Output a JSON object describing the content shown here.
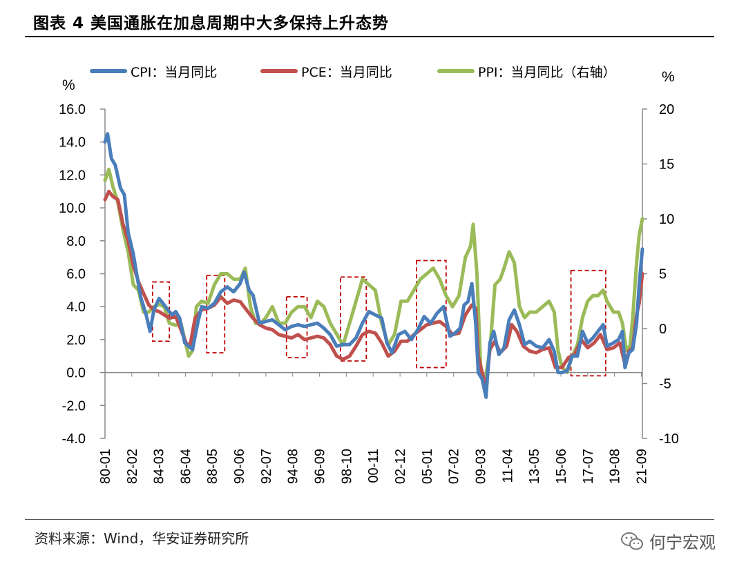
{
  "header": {
    "title": "图表 4  美国通胀在加息周期中大多保持上升态势"
  },
  "footer": {
    "source": "资料来源：Wind，华安证券研究所",
    "watermark": "何宁宏观",
    "watermark_icon": "wechat-icon"
  },
  "chart_data": {
    "type": "line",
    "left_unit": "%",
    "right_unit": "%",
    "y_left": {
      "range": [
        -4,
        16
      ],
      "ticks": [
        -4,
        -2,
        0,
        2,
        4,
        6,
        8,
        10,
        12,
        14,
        16
      ],
      "labels": [
        "-4.0",
        "-2.0",
        "0.0",
        "2.0",
        "4.0",
        "6.0",
        "8.0",
        "10.0",
        "12.0",
        "14.0",
        "16.0"
      ]
    },
    "y_right": {
      "range": [
        -10,
        20
      ],
      "ticks": [
        -10,
        -5,
        0,
        5,
        10,
        15,
        20
      ],
      "labels": [
        "-10",
        "-5",
        "0",
        "5",
        "10",
        "15",
        "20"
      ]
    },
    "x_range": [
      1980.0,
      2021.75
    ],
    "x_ticks": [
      {
        "label": "80-01",
        "x": 1980.0
      },
      {
        "label": "82-02",
        "x": 1982.08
      },
      {
        "label": "84-03",
        "x": 1984.17
      },
      {
        "label": "86-04",
        "x": 1986.25
      },
      {
        "label": "88-05",
        "x": 1988.33
      },
      {
        "label": "90-06",
        "x": 1990.42
      },
      {
        "label": "92-07",
        "x": 1992.5
      },
      {
        "label": "94-08",
        "x": 1994.58
      },
      {
        "label": "96-09",
        "x": 1996.67
      },
      {
        "label": "98-10",
        "x": 1998.75
      },
      {
        "label": "00-11",
        "x": 2000.83
      },
      {
        "label": "02-12",
        "x": 2002.92
      },
      {
        "label": "05-01",
        "x": 2005.0
      },
      {
        "label": "07-02",
        "x": 2007.08
      },
      {
        "label": "09-03",
        "x": 2009.17
      },
      {
        "label": "11-04",
        "x": 2011.25
      },
      {
        "label": "13-05",
        "x": 2013.33
      },
      {
        "label": "15-06",
        "x": 2015.42
      },
      {
        "label": "17-07",
        "x": 2017.5
      },
      {
        "label": "19-08",
        "x": 2019.58
      },
      {
        "label": "21-09",
        "x": 2021.67
      }
    ],
    "series": [
      {
        "name": "CPI：当月同比",
        "axis": "left",
        "color": "#4A7EBB",
        "x": [
          1980.0,
          1980.2,
          1980.5,
          1980.8,
          1981.2,
          1981.5,
          1981.8,
          1982.2,
          1982.5,
          1982.8,
          1983.2,
          1983.5,
          1983.8,
          1984.2,
          1984.5,
          1984.8,
          1985.2,
          1985.5,
          1985.8,
          1986.2,
          1986.5,
          1986.8,
          1987.2,
          1987.5,
          1988.0,
          1988.5,
          1989.0,
          1989.5,
          1990.0,
          1990.5,
          1990.8,
          1991.2,
          1991.5,
          1992.0,
          1992.5,
          1993.0,
          1993.5,
          1994.0,
          1994.5,
          1995.0,
          1995.5,
          1996.0,
          1996.5,
          1997.0,
          1997.5,
          1998.0,
          1998.5,
          1999.0,
          1999.5,
          2000.0,
          2000.5,
          2001.0,
          2001.5,
          2001.9,
          2002.3,
          2002.8,
          2003.3,
          2003.8,
          2004.3,
          2004.8,
          2005.3,
          2005.8,
          2006.3,
          2006.8,
          2007.2,
          2007.6,
          2007.9,
          2008.2,
          2008.5,
          2008.8,
          2009.0,
          2009.3,
          2009.6,
          2009.9,
          2010.2,
          2010.6,
          2011.0,
          2011.4,
          2011.8,
          2012.2,
          2012.6,
          2013.0,
          2013.5,
          2014.0,
          2014.5,
          2014.9,
          2015.2,
          2015.5,
          2015.9,
          2016.3,
          2016.7,
          2017.1,
          2017.5,
          2017.9,
          2018.3,
          2018.7,
          2019.0,
          2019.5,
          2019.9,
          2020.2,
          2020.4,
          2020.7,
          2021.0,
          2021.3,
          2021.5,
          2021.75
        ],
        "y": [
          14.0,
          14.5,
          13.0,
          12.6,
          11.2,
          10.8,
          8.5,
          7.2,
          5.8,
          4.5,
          3.5,
          2.5,
          3.8,
          4.5,
          4.2,
          3.9,
          3.5,
          3.7,
          3.3,
          1.8,
          1.6,
          1.4,
          3.0,
          4.0,
          3.9,
          4.2,
          4.9,
          5.2,
          4.9,
          5.4,
          6.1,
          5.0,
          4.7,
          3.0,
          3.1,
          3.2,
          2.9,
          2.6,
          2.8,
          2.9,
          2.8,
          2.9,
          3.0,
          2.7,
          2.3,
          1.6,
          1.7,
          1.7,
          2.1,
          3.0,
          3.7,
          3.5,
          3.3,
          1.8,
          1.2,
          2.3,
          2.5,
          2.0,
          2.6,
          3.4,
          3.0,
          3.6,
          4.0,
          2.2,
          2.4,
          2.7,
          4.1,
          4.3,
          5.4,
          3.0,
          0.0,
          -0.4,
          -1.5,
          1.8,
          2.5,
          1.1,
          1.5,
          3.2,
          3.8,
          2.9,
          1.7,
          1.9,
          1.6,
          1.5,
          2.0,
          1.3,
          0.0,
          0.0,
          0.1,
          1.0,
          1.0,
          2.5,
          1.8,
          2.1,
          2.5,
          2.9,
          1.6,
          1.8,
          2.0,
          2.5,
          0.3,
          1.2,
          1.4,
          3.0,
          5.3,
          7.5
        ]
      },
      {
        "name": "PCE：当月同比",
        "axis": "left",
        "color": "#C0504D",
        "x": [
          1980.0,
          1980.3,
          1980.6,
          1981.0,
          1981.4,
          1981.8,
          1982.2,
          1982.6,
          1983.0,
          1983.4,
          1983.8,
          1984.2,
          1984.6,
          1985.0,
          1985.5,
          1986.0,
          1986.3,
          1986.6,
          1987.0,
          1987.5,
          1988.0,
          1988.5,
          1989.0,
          1989.5,
          1990.0,
          1990.5,
          1991.0,
          1991.5,
          1992.0,
          1992.5,
          1993.0,
          1993.5,
          1994.0,
          1994.5,
          1995.0,
          1995.5,
          1996.0,
          1996.5,
          1997.0,
          1997.5,
          1998.0,
          1998.5,
          1999.0,
          1999.5,
          2000.0,
          2000.5,
          2001.0,
          2001.5,
          2002.0,
          2002.5,
          2003.0,
          2003.5,
          2004.0,
          2004.5,
          2005.0,
          2005.5,
          2006.0,
          2006.5,
          2007.0,
          2007.5,
          2008.0,
          2008.5,
          2008.8,
          2009.0,
          2009.3,
          2009.6,
          2009.9,
          2010.3,
          2010.7,
          2011.2,
          2011.6,
          2012.0,
          2012.5,
          2013.0,
          2013.5,
          2014.0,
          2014.5,
          2015.0,
          2015.5,
          2016.0,
          2016.5,
          2017.0,
          2017.5,
          2018.0,
          2018.5,
          2019.0,
          2019.5,
          2020.0,
          2020.4,
          2020.7,
          2021.0,
          2021.3,
          2021.5,
          2021.75
        ],
        "y": [
          10.5,
          11.0,
          10.7,
          10.5,
          9.0,
          8.0,
          6.5,
          5.5,
          4.8,
          4.1,
          3.8,
          3.7,
          3.5,
          3.3,
          3.4,
          2.4,
          1.8,
          1.6,
          3.3,
          3.8,
          3.9,
          4.1,
          4.6,
          4.2,
          4.4,
          4.3,
          3.8,
          3.3,
          2.9,
          2.7,
          2.6,
          2.3,
          2.2,
          2.1,
          2.3,
          2.0,
          2.1,
          2.2,
          2.1,
          1.7,
          1.0,
          0.8,
          1.0,
          1.6,
          2.3,
          2.5,
          2.4,
          1.8,
          1.0,
          1.3,
          1.9,
          1.9,
          2.3,
          2.6,
          2.9,
          3.0,
          3.1,
          2.8,
          2.3,
          2.4,
          3.5,
          4.1,
          3.9,
          1.0,
          0.0,
          -1.0,
          1.4,
          1.9,
          1.2,
          1.6,
          2.9,
          2.5,
          1.6,
          1.3,
          1.2,
          1.4,
          1.5,
          0.3,
          0.3,
          0.9,
          1.1,
          2.0,
          1.5,
          1.8,
          2.3,
          1.4,
          1.5,
          1.8,
          0.5,
          1.3,
          1.5,
          3.5,
          4.2,
          6.0
        ]
      },
      {
        "name": "PPI：当月同比（右轴）",
        "axis": "right",
        "color": "#9BBB59",
        "x": [
          1980.0,
          1980.3,
          1980.6,
          1981.0,
          1981.4,
          1981.8,
          1982.2,
          1982.6,
          1983.0,
          1983.4,
          1983.8,
          1984.2,
          1984.6,
          1985.0,
          1985.5,
          1985.9,
          1986.2,
          1986.5,
          1986.8,
          1987.1,
          1987.5,
          1988.0,
          1988.5,
          1989.0,
          1989.5,
          1990.0,
          1990.5,
          1990.9,
          1991.3,
          1991.7,
          1992.1,
          1992.5,
          1993.0,
          1993.5,
          1994.0,
          1994.5,
          1995.0,
          1995.5,
          1996.0,
          1996.5,
          1997.0,
          1997.5,
          1998.0,
          1998.5,
          1999.0,
          1999.5,
          2000.0,
          2000.5,
          2001.0,
          2001.5,
          2002.0,
          2002.5,
          2003.0,
          2003.5,
          2004.0,
          2004.5,
          2005.0,
          2005.5,
          2006.0,
          2006.5,
          2007.0,
          2007.5,
          2008.0,
          2008.4,
          2008.6,
          2008.9,
          2009.2,
          2009.5,
          2009.9,
          2010.3,
          2010.7,
          2011.0,
          2011.4,
          2011.8,
          2012.2,
          2012.6,
          2013.0,
          2013.5,
          2014.0,
          2014.5,
          2014.9,
          2015.2,
          2015.5,
          2015.9,
          2016.3,
          2016.7,
          2017.1,
          2017.5,
          2017.9,
          2018.3,
          2018.7,
          2019.0,
          2019.5,
          2019.9,
          2020.2,
          2020.5,
          2020.8,
          2021.0,
          2021.3,
          2021.5,
          2021.75
        ],
        "y": [
          13.5,
          14.5,
          13.0,
          11.5,
          9.0,
          7.0,
          4.0,
          3.5,
          1.5,
          1.5,
          2.0,
          2.2,
          2.0,
          0.5,
          0.3,
          0.5,
          -1.0,
          -2.5,
          -2.0,
          2.0,
          2.5,
          2.3,
          4.0,
          5.0,
          5.0,
          4.5,
          4.5,
          5.5,
          2.0,
          0.5,
          0.5,
          1.0,
          2.0,
          0.5,
          0.5,
          1.5,
          2.0,
          2.0,
          1.0,
          2.5,
          2.0,
          0.5,
          -0.5,
          -1.5,
          0.5,
          2.5,
          4.5,
          4.0,
          3.5,
          0.5,
          -1.5,
          -0.5,
          2.5,
          2.5,
          3.5,
          4.5,
          5.0,
          5.5,
          4.5,
          3.0,
          2.0,
          3.0,
          6.5,
          7.5,
          9.5,
          5.0,
          -4.0,
          -5.0,
          -2.0,
          4.0,
          4.5,
          5.5,
          7.0,
          6.0,
          2.0,
          1.0,
          1.5,
          1.5,
          2.0,
          2.5,
          1.5,
          -2.0,
          -3.5,
          -4.0,
          -2.5,
          -1.5,
          1.0,
          2.5,
          3.0,
          3.0,
          3.5,
          2.5,
          1.5,
          1.5,
          0.5,
          -2.0,
          -1.5,
          1.0,
          6.0,
          8.5,
          10.0
        ]
      }
    ],
    "highlight_periods": [
      {
        "start": 1983.7,
        "end": 1985.0,
        "ymin": 1.9,
        "ymax": 5.5
      },
      {
        "start": 1987.9,
        "end": 1989.3,
        "ymin": 1.2,
        "ymax": 5.9
      },
      {
        "start": 1994.1,
        "end": 1995.7,
        "ymin": 0.9,
        "ymax": 4.6
      },
      {
        "start": 1998.3,
        "end": 2000.3,
        "ymin": 0.7,
        "ymax": 5.8
      },
      {
        "start": 2004.2,
        "end": 2006.5,
        "ymin": 0.3,
        "ymax": 6.8
      },
      {
        "start": 2016.2,
        "end": 2018.9,
        "ymin": -0.2,
        "ymax": 6.2
      }
    ]
  }
}
